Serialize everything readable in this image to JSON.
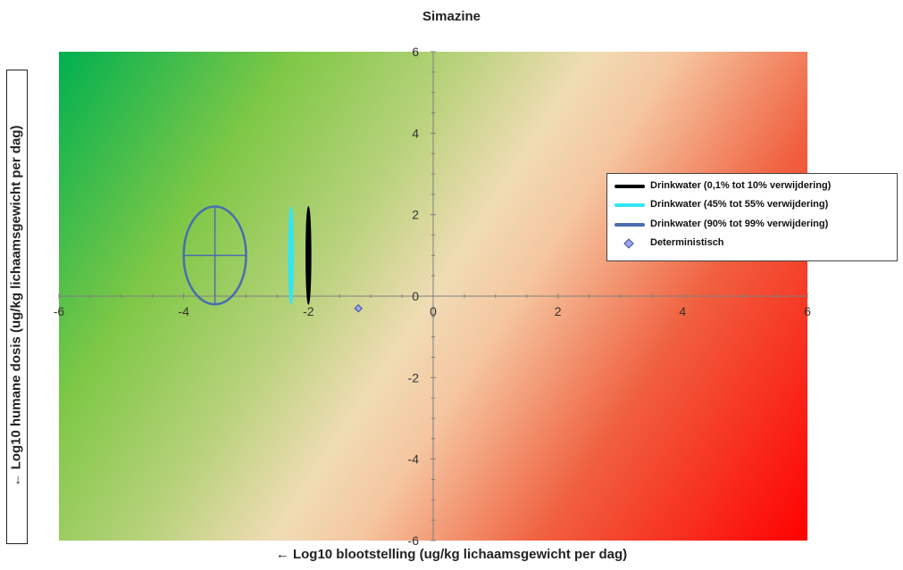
{
  "chart_data": {
    "type": "scatter",
    "title": "Simazine",
    "xlabel": "← Log10 blootstelling (ug/kg lichaamsgewicht per dag)",
    "ylabel": "← Log10 humane dosis (ug/kg lichaamsgewicht per dag)",
    "xlim": [
      -6,
      6
    ],
    "ylim": [
      -6,
      6
    ],
    "x_ticks": [
      -6,
      -4,
      -2,
      0,
      2,
      4,
      6
    ],
    "y_ticks": [
      -6,
      -4,
      -2,
      0,
      2,
      4,
      6
    ],
    "grid": false,
    "legend_position": "right",
    "background": "gradient: green (top-left) to red (bottom-right)",
    "series": [
      {
        "name": "Drinkwater (0,1% tot 10% verwijdering)",
        "kind": "ellipse",
        "color": "#000000",
        "center": [
          -2.0,
          1.0
        ],
        "half_width": 0.04,
        "half_height": 1.2
      },
      {
        "name": "Drinkwater (45% tot 55% verwijdering)",
        "kind": "ellipse",
        "color": "#33e6f2",
        "center": [
          -2.28,
          1.0
        ],
        "half_width": 0.04,
        "half_height": 1.2
      },
      {
        "name": "Drinkwater (90% tot 99% verwijdering)",
        "kind": "ellipse",
        "color": "#4a6db0",
        "center": [
          -3.5,
          1.0
        ],
        "half_width": 0.5,
        "half_height": 1.2,
        "crosshair": true
      },
      {
        "name": "Deterministisch",
        "kind": "point",
        "color": "#9fa6e6",
        "x": -1.2,
        "y": -0.3
      }
    ]
  }
}
